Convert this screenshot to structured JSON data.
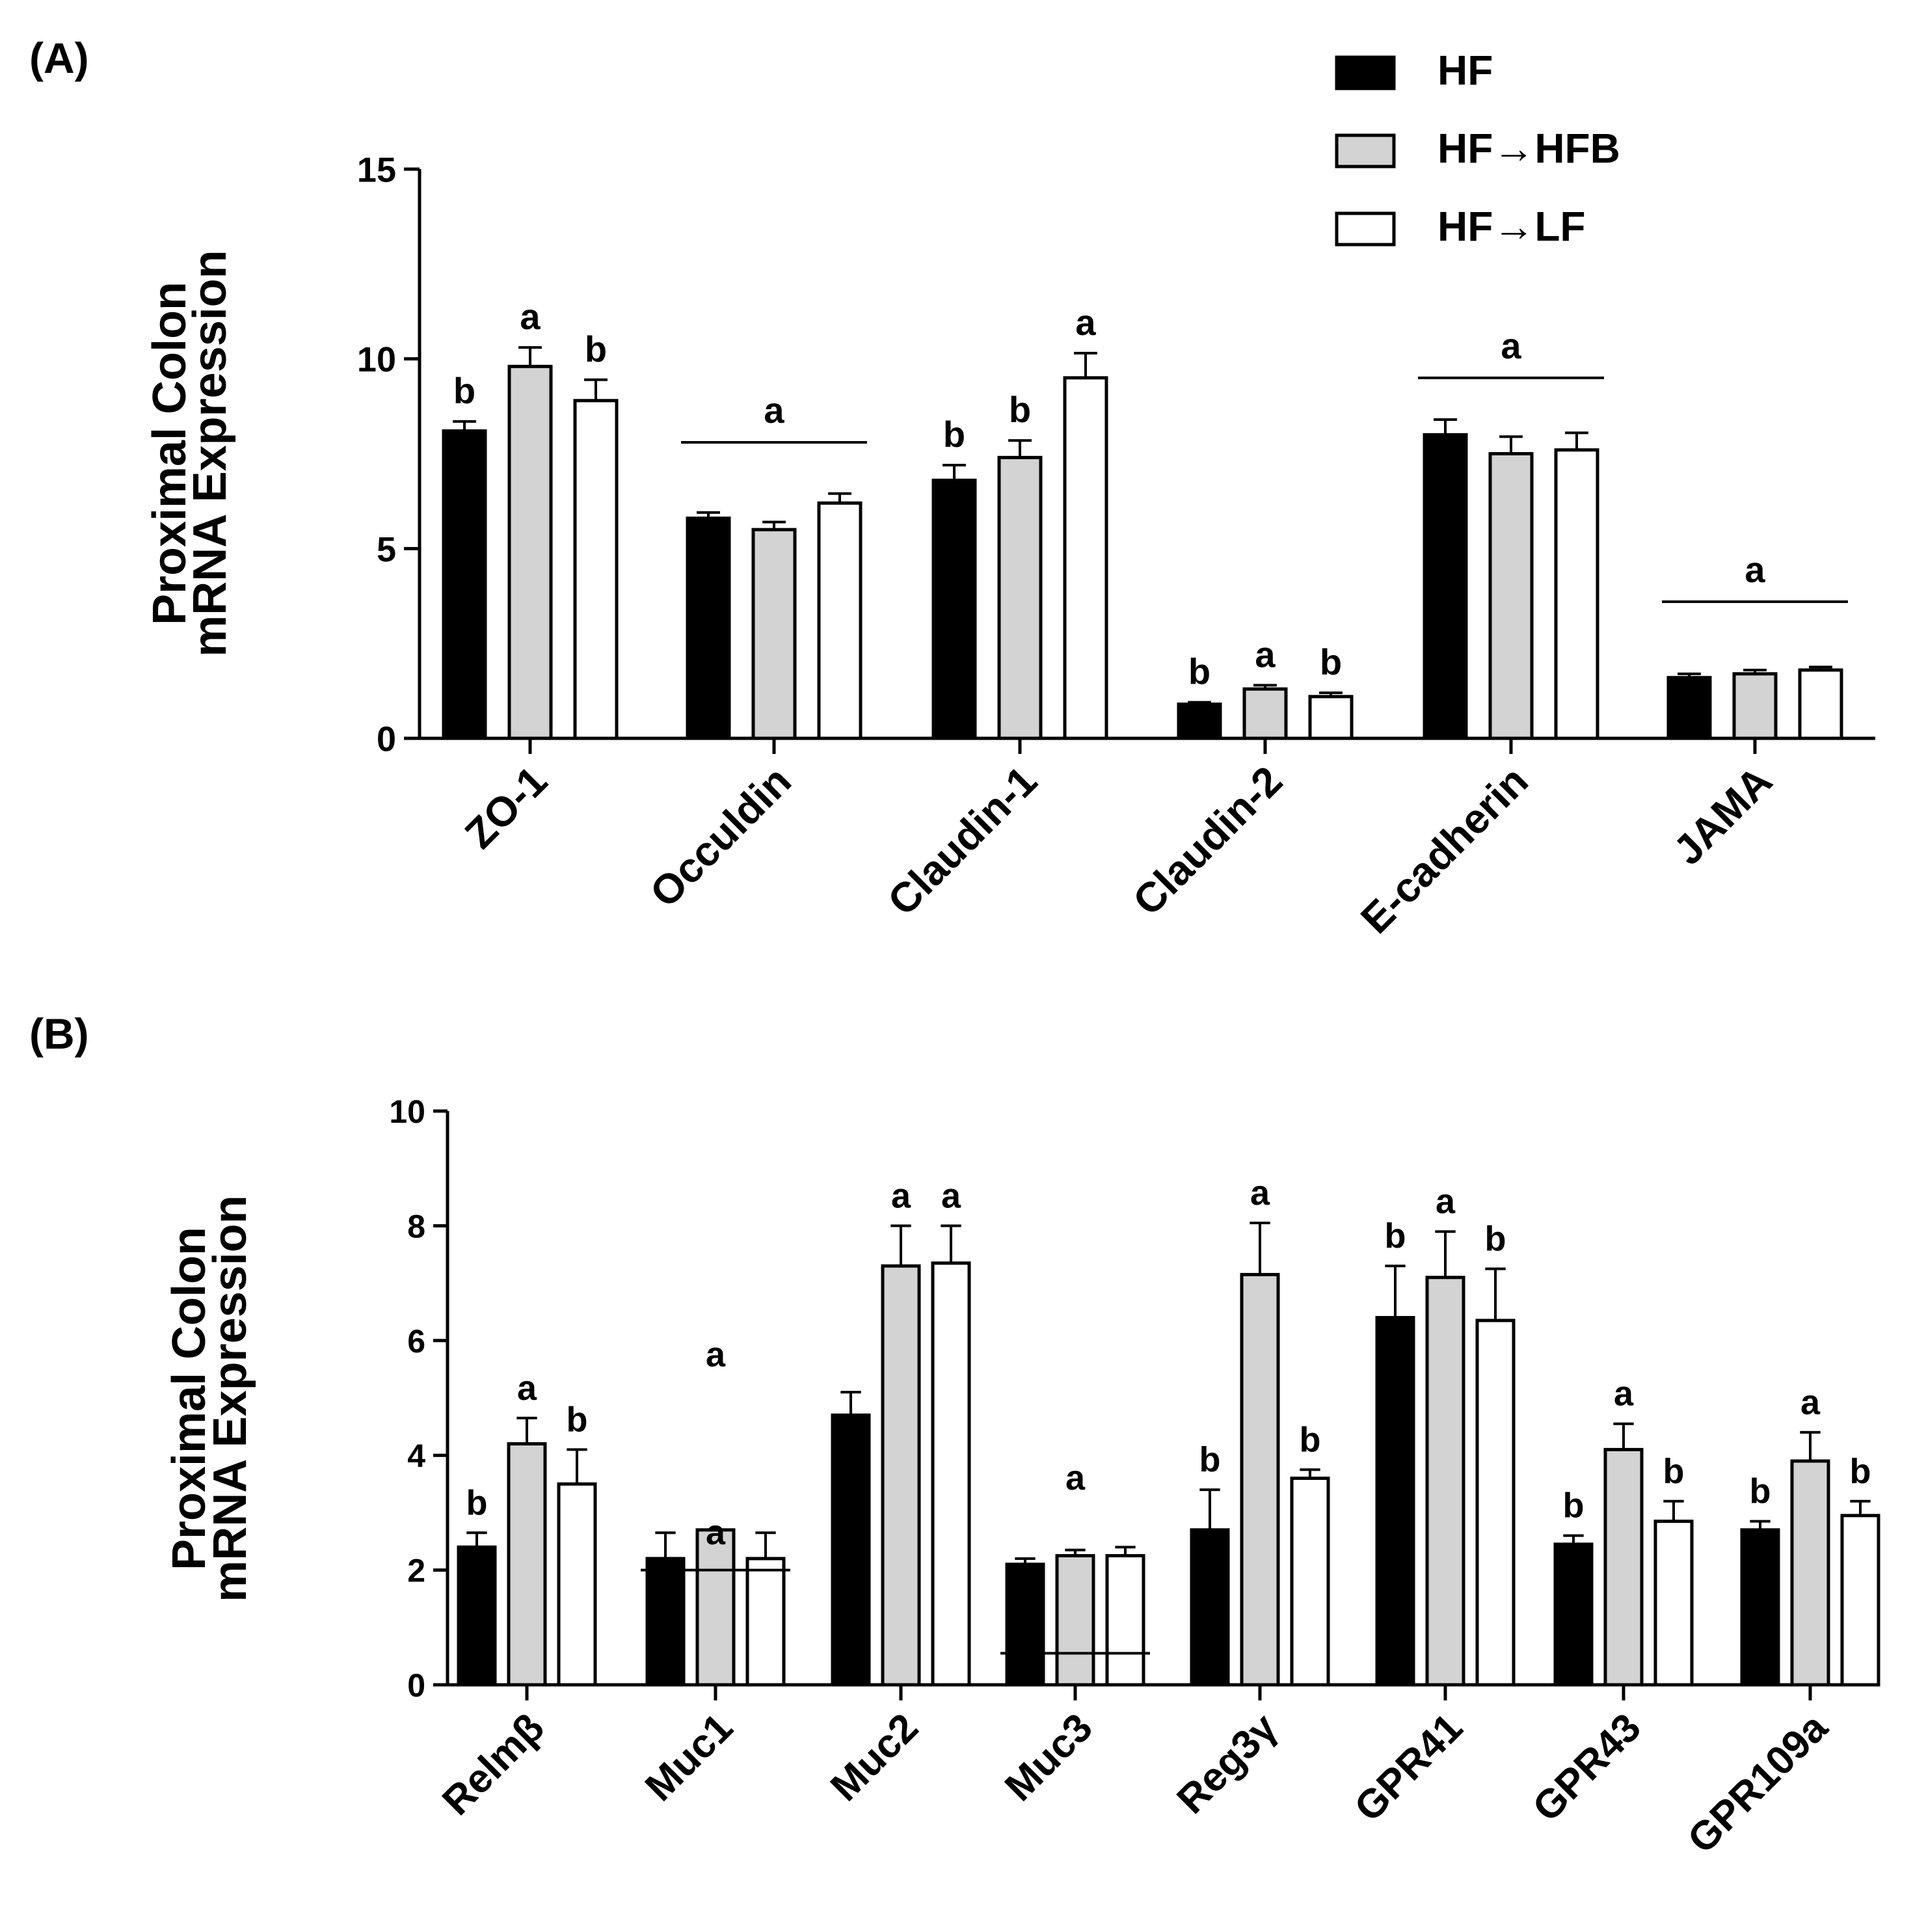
{
  "legend": [
    {
      "name": "HF",
      "fill": "#000000"
    },
    {
      "name": "HF→HFB",
      "fill": "#d3d3d3"
    },
    {
      "name": "HF→LF",
      "fill": "#ffffff"
    }
  ],
  "chart_data": [
    {
      "type": "bar",
      "panel_label": "(A)",
      "ylabel_lines": [
        "Proximal  Colon",
        "mRNA Expression"
      ],
      "ylim": [
        0,
        15
      ],
      "yticks": [
        0,
        5,
        10,
        15
      ],
      "legend_position": "top-right",
      "categories": [
        "ZO-1",
        "Occuldin",
        "Claudin-1",
        "Claudin-2",
        "E-cadherin",
        "JAMA"
      ],
      "series": [
        {
          "name": "HF",
          "values": [
            8.1,
            5.8,
            6.8,
            0.9,
            8.0,
            1.6
          ],
          "errors": [
            0.25,
            0.15,
            0.4,
            0.05,
            0.4,
            0.1
          ]
        },
        {
          "name": "HF→HFB",
          "values": [
            9.8,
            5.5,
            7.4,
            1.3,
            7.5,
            1.7
          ],
          "errors": [
            0.5,
            0.2,
            0.45,
            0.1,
            0.45,
            0.1
          ]
        },
        {
          "name": "HF→LF",
          "values": [
            8.9,
            6.2,
            9.5,
            1.1,
            7.6,
            1.8
          ],
          "errors": [
            0.55,
            0.25,
            0.65,
            0.1,
            0.45,
            0.08
          ]
        }
      ],
      "annotations": [
        {
          "category": 0,
          "series": 0,
          "label": "b"
        },
        {
          "category": 0,
          "series": 1,
          "label": "a"
        },
        {
          "category": 0,
          "series": 2,
          "label": "b"
        },
        {
          "category": 1,
          "span": [
            0,
            2
          ],
          "label": "a",
          "level": 7.8
        },
        {
          "category": 2,
          "series": 0,
          "label": "b"
        },
        {
          "category": 2,
          "series": 1,
          "label": "b"
        },
        {
          "category": 2,
          "series": 2,
          "label": "a"
        },
        {
          "category": 3,
          "series": 0,
          "label": "b"
        },
        {
          "category": 3,
          "series": 1,
          "label": "a"
        },
        {
          "category": 3,
          "series": 2,
          "label": "b"
        },
        {
          "category": 4,
          "span": [
            0,
            2
          ],
          "label": "a",
          "level": 9.5
        },
        {
          "category": 5,
          "span": [
            0,
            2
          ],
          "label": "a",
          "level": 3.6
        }
      ]
    },
    {
      "type": "bar",
      "panel_label": "(B)",
      "ylabel_lines": [
        "Proximal  Colon",
        "mRNA Expression"
      ],
      "ylim": [
        0,
        10
      ],
      "yticks": [
        0,
        2,
        4,
        6,
        8,
        10
      ],
      "categories": [
        "Relmβ",
        "Muc1",
        "Muc2",
        "Muc3",
        "Reg3γ",
        "GPR41",
        "GPR43",
        "GPR109a"
      ],
      "series": [
        {
          "name": "HF",
          "values": [
            2.4,
            2.2,
            4.7,
            2.1,
            2.7,
            6.4,
            2.45,
            2.7
          ],
          "errors": [
            0.25,
            0.45,
            0.4,
            0.1,
            0.7,
            0.9,
            0.15,
            0.15
          ]
        },
        {
          "name": "HF→HFB",
          "values": [
            4.2,
            2.7,
            7.3,
            2.25,
            7.15,
            7.1,
            4.1,
            3.9
          ],
          "errors": [
            0.45,
            0.0,
            0.7,
            0.1,
            0.9,
            0.8,
            0.45,
            0.5
          ]
        },
        {
          "name": "HF→LF",
          "values": [
            3.5,
            2.2,
            7.35,
            2.25,
            3.6,
            6.35,
            2.85,
            2.95
          ],
          "errors": [
            0.6,
            0.45,
            0.65,
            0.15,
            0.15,
            0.9,
            0.35,
            0.25
          ]
        }
      ],
      "annotations": [
        {
          "category": 0,
          "series": 0,
          "label": "b"
        },
        {
          "category": 0,
          "series": 1,
          "label": "a"
        },
        {
          "category": 0,
          "series": 2,
          "label": "b"
        },
        {
          "category": 1,
          "series": 1,
          "label": "a",
          "level": 2.45
        },
        {
          "category": 1,
          "series": 1,
          "label": "a",
          "level": 5.55
        },
        {
          "category": 1,
          "span": [
            0,
            2
          ],
          "line_only": true,
          "level": 2.0
        },
        {
          "category": 2,
          "series": 1,
          "label": "a"
        },
        {
          "category": 2,
          "series": 2,
          "label": "a"
        },
        {
          "category": 3,
          "series": 1,
          "label": "a",
          "level": 3.4
        },
        {
          "category": 3,
          "span": [
            0,
            2
          ],
          "line_only": true,
          "level": 0.55
        },
        {
          "category": 4,
          "series": 0,
          "label": "b"
        },
        {
          "category": 4,
          "series": 1,
          "label": "a"
        },
        {
          "category": 4,
          "series": 2,
          "label": "b"
        },
        {
          "category": 5,
          "series": 0,
          "label": "b"
        },
        {
          "category": 5,
          "series": 1,
          "label": "a"
        },
        {
          "category": 5,
          "series": 2,
          "label": "b"
        },
        {
          "category": 6,
          "series": 0,
          "label": "b"
        },
        {
          "category": 6,
          "series": 1,
          "label": "a"
        },
        {
          "category": 6,
          "series": 2,
          "label": "b"
        },
        {
          "category": 7,
          "series": 0,
          "label": "b"
        },
        {
          "category": 7,
          "series": 1,
          "label": "a"
        },
        {
          "category": 7,
          "series": 2,
          "label": "b"
        }
      ]
    }
  ]
}
